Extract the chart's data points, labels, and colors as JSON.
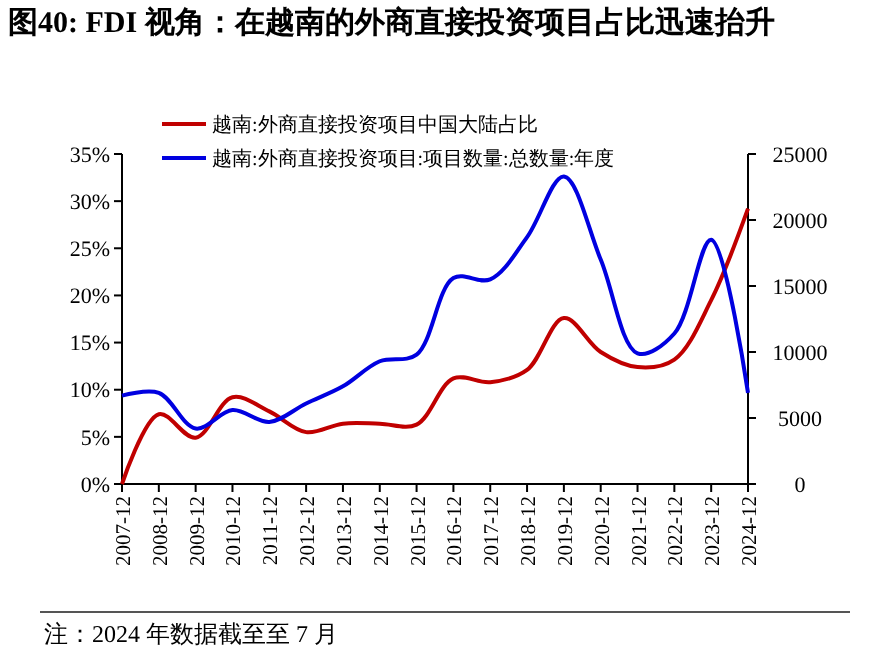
{
  "chart_data": {
    "type": "line",
    "title": "图40:  FDI 视角：在越南的外商直接投资项目占比迅速抬升",
    "categories": [
      "2007-12",
      "2008-12",
      "2009-12",
      "2010-12",
      "2011-12",
      "2012-12",
      "2013-12",
      "2014-12",
      "2015-12",
      "2016-12",
      "2017-12",
      "2018-12",
      "2019-12",
      "2020-12",
      "2021-12",
      "2022-12",
      "2023-12",
      "2024-12"
    ],
    "series": [
      {
        "name": "越南:外商直接投资项目中国大陆占比",
        "color": "#c00000",
        "values": [
          0,
          7.4,
          4.9,
          9.2,
          7.7,
          5.5,
          6.4,
          6.4,
          6.3,
          11.2,
          10.8,
          12.1,
          17.6,
          14.0,
          12.4,
          13.2,
          19.5,
          29.2
        ]
      },
      {
        "name": "越南:外商直接投资项目:项目数量:总数量:年度",
        "color": "#0000e0",
        "axis": "y2",
        "values": [
          6700,
          6900,
          4200,
          5600,
          4700,
          6100,
          7400,
          9300,
          9800,
          15600,
          15500,
          18700,
          23300,
          17000,
          9900,
          11400,
          18500,
          6900
        ]
      }
    ],
    "ylim": [
      0,
      35
    ],
    "yticks": [
      {
        "value": 0,
        "label": "0%"
      },
      {
        "value": 5,
        "label": "5%"
      },
      {
        "value": 10,
        "label": "10%"
      },
      {
        "value": 15,
        "label": "15%"
      },
      {
        "value": 20,
        "label": "20%"
      },
      {
        "value": 25,
        "label": "25%"
      },
      {
        "value": 30,
        "label": "30%"
      },
      {
        "value": 35,
        "label": "35%"
      }
    ],
    "y2lim": [
      0,
      25000
    ],
    "y2ticks": [
      0,
      5000,
      10000,
      15000,
      20000,
      25000
    ],
    "legend": "top left",
    "grid": false,
    "annotations": [
      "注：2024 年数据截至至 7 月"
    ]
  }
}
